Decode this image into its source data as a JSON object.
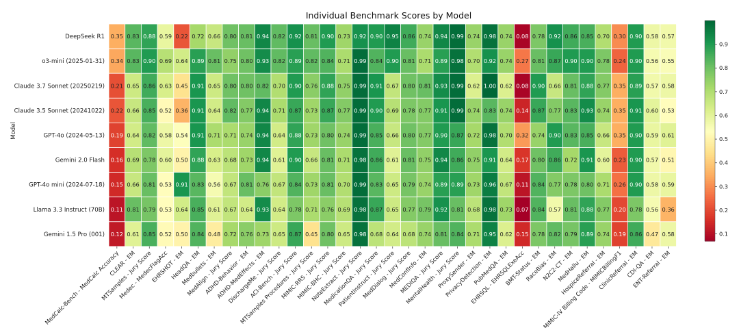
{
  "chart_data": {
    "type": "heatmap",
    "title": "Individual Benchmark Scores by Model",
    "ylabel": "Model",
    "xlabel": "",
    "rows": [
      "DeepSeek R1",
      "o3-mini (2025-01-31)",
      "Claude 3.7 Sonnet (20250219)",
      "Claude 3.5 Sonnet (20241022)",
      "GPT-4o (2024-05-13)",
      "Gemini 2.0 Flash",
      "GPT-4o mini (2024-07-18)",
      "Llama 3.3 Instruct (70B)",
      "Gemini 1.5 Pro (001)"
    ],
    "columns": [
      "MedCalc-Bench - MedCalc Accuracy",
      "CLEAR - EM",
      "MTSamples - Jury Score",
      "Medec - MedecFlagAcc",
      "EHRSHOT - EM",
      "HeadQA - EM",
      "Medbullets - EM",
      "MedAlign - Jury Score",
      "ADHD-Behavior - EM",
      "ADHD-MedEffects - EM",
      "DischargeMe - Jury Score",
      "ACI-Bench - Jury Score",
      "MTSamples Procedures - Jury Score",
      "MIMIC-RRS - Jury Score",
      "MIMIC-BHC - Jury Score",
      "NoteExtract - Jury Score",
      "MedicationQA - Jury Score",
      "PatientInstruct - Jury Score",
      "MedDialog - Jury Score",
      "MedConfInfo - EM",
      "MEDIQA - Jury Score",
      "MentalHealth - Jury Score",
      "ProxySender - EM",
      "PrivacyDetection - EM",
      "PubMedQA - EM",
      "EHRSQL - EHRSQLExeAcc",
      "BMT-Status - EM",
      "RaceBias - EM",
      "N2C2-CT - EM",
      "MedHallu - EM",
      "HospiceReferral - EM",
      "MIMIC-IV Billing Code - MIMICBillingF1",
      "ClinicReferral - EM",
      "CDI-QA - EM",
      "ENT-Referral - EM"
    ],
    "values": [
      [
        0.35,
        0.83,
        0.88,
        0.59,
        0.22,
        0.72,
        0.66,
        0.8,
        0.81,
        0.94,
        0.82,
        0.92,
        0.81,
        0.9,
        0.73,
        0.92,
        0.9,
        0.95,
        0.86,
        0.74,
        0.94,
        0.99,
        0.74,
        0.98,
        0.74,
        0.08,
        0.78,
        0.92,
        0.86,
        0.85,
        0.7,
        0.3,
        0.9,
        0.58,
        0.57
      ],
      [
        0.34,
        0.83,
        0.9,
        0.69,
        0.64,
        0.89,
        0.81,
        0.75,
        0.8,
        0.93,
        0.82,
        0.89,
        0.82,
        0.84,
        0.71,
        0.99,
        0.84,
        0.9,
        0.81,
        0.71,
        0.89,
        0.98,
        0.7,
        0.92,
        0.74,
        0.27,
        0.81,
        0.87,
        0.9,
        0.9,
        0.78,
        0.24,
        0.9,
        0.56,
        0.55
      ],
      [
        0.21,
        0.65,
        0.86,
        0.63,
        0.45,
        0.91,
        0.65,
        0.8,
        0.8,
        0.82,
        0.7,
        0.9,
        0.76,
        0.88,
        0.75,
        0.99,
        0.91,
        0.67,
        0.8,
        0.81,
        0.93,
        0.99,
        0.62,
        1.0,
        0.62,
        0.08,
        0.9,
        0.66,
        0.81,
        0.88,
        0.77,
        0.35,
        0.89,
        0.57,
        0.58
      ],
      [
        0.22,
        0.66,
        0.85,
        0.52,
        0.36,
        0.91,
        0.64,
        0.82,
        0.77,
        0.94,
        0.71,
        0.87,
        0.73,
        0.87,
        0.77,
        0.99,
        0.9,
        0.69,
        0.78,
        0.77,
        0.91,
        0.99,
        0.74,
        0.83,
        0.74,
        0.14,
        0.87,
        0.77,
        0.83,
        0.93,
        0.74,
        0.35,
        0.91,
        0.6,
        0.53
      ],
      [
        0.19,
        0.64,
        0.82,
        0.58,
        0.54,
        0.91,
        0.71,
        0.71,
        0.74,
        0.94,
        0.64,
        0.88,
        0.73,
        0.8,
        0.74,
        0.99,
        0.85,
        0.66,
        0.8,
        0.77,
        0.9,
        0.87,
        0.72,
        0.98,
        0.7,
        0.32,
        0.74,
        0.9,
        0.83,
        0.85,
        0.66,
        0.35,
        0.9,
        0.59,
        0.61
      ],
      [
        0.16,
        0.69,
        0.78,
        0.6,
        0.5,
        0.88,
        0.63,
        0.68,
        0.73,
        0.94,
        0.61,
        0.9,
        0.66,
        0.81,
        0.71,
        0.98,
        0.86,
        0.61,
        0.81,
        0.75,
        0.94,
        0.86,
        0.75,
        0.91,
        0.64,
        0.17,
        0.8,
        0.86,
        0.72,
        0.91,
        0.6,
        0.23,
        0.9,
        0.57,
        0.51
      ],
      [
        0.15,
        0.66,
        0.81,
        0.53,
        0.91,
        0.83,
        0.56,
        0.67,
        0.81,
        0.76,
        0.67,
        0.84,
        0.73,
        0.81,
        0.7,
        0.99,
        0.83,
        0.65,
        0.79,
        0.74,
        0.89,
        0.89,
        0.73,
        0.96,
        0.67,
        0.11,
        0.84,
        0.77,
        0.78,
        0.8,
        0.71,
        0.26,
        0.9,
        0.58,
        0.59
      ],
      [
        0.11,
        0.81,
        0.79,
        0.53,
        0.64,
        0.85,
        0.61,
        0.67,
        0.64,
        0.93,
        0.64,
        0.78,
        0.71,
        0.76,
        0.69,
        0.98,
        0.87,
        0.65,
        0.77,
        0.79,
        0.92,
        0.81,
        0.68,
        0.98,
        0.73,
        0.07,
        0.84,
        0.57,
        0.81,
        0.88,
        0.77,
        0.2,
        0.78,
        0.56,
        0.36
      ],
      [
        0.12,
        0.61,
        0.85,
        0.52,
        0.5,
        0.84,
        0.48,
        0.72,
        0.76,
        0.73,
        0.65,
        0.87,
        0.45,
        0.8,
        0.65,
        0.98,
        0.68,
        0.64,
        0.68,
        0.74,
        0.81,
        0.84,
        0.71,
        0.95,
        0.62,
        0.15,
        0.78,
        0.82,
        0.79,
        0.89,
        0.74,
        0.19,
        0.86,
        0.47,
        0.58
      ]
    ],
    "colormap": "RdYlGn",
    "vmin": 0.07,
    "vmax": 1.0,
    "colorbar_ticks": [
      0.1,
      0.2,
      0.3,
      0.4,
      0.5,
      0.6,
      0.7,
      0.8,
      0.9
    ]
  }
}
